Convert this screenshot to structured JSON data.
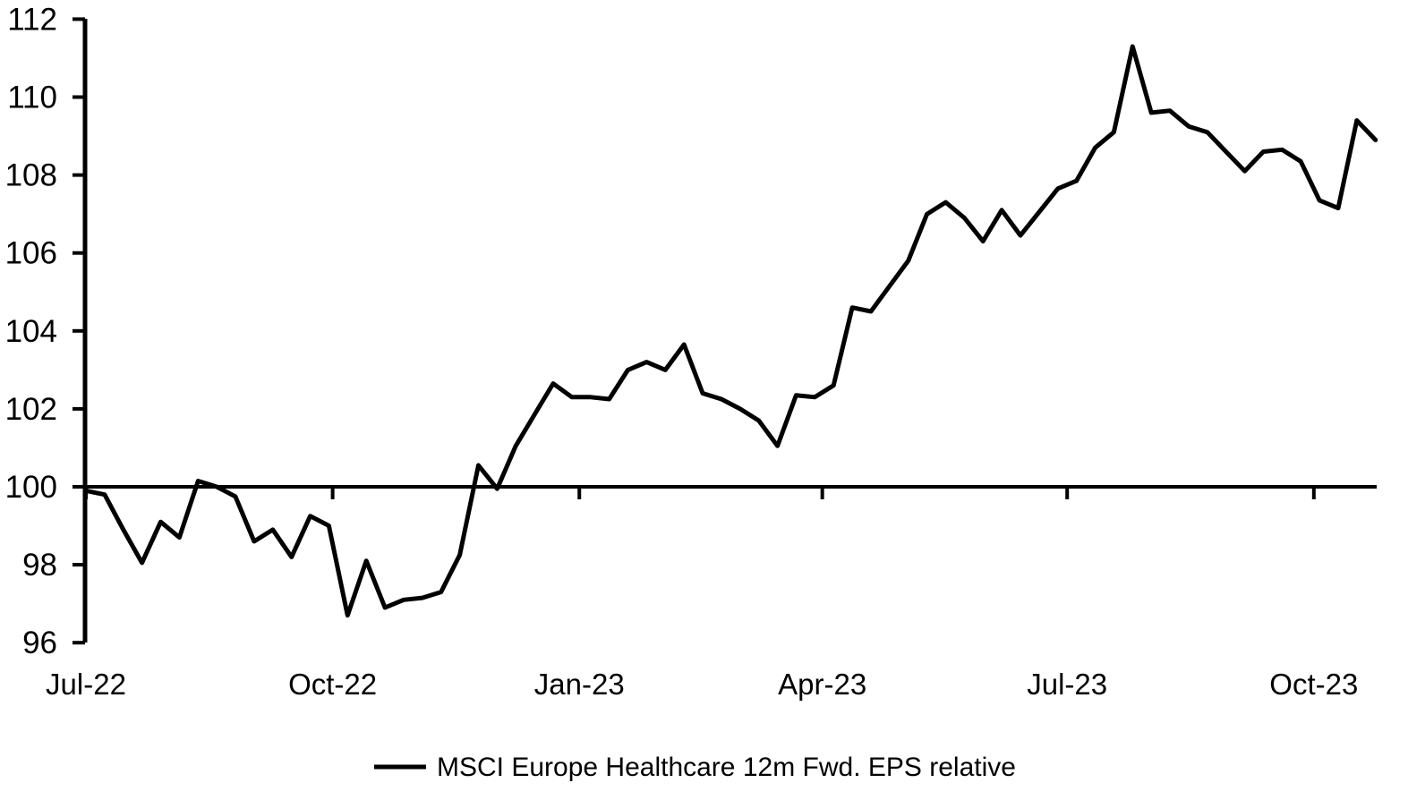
{
  "chart_data": {
    "type": "line",
    "title": "",
    "legend_label": "MSCI Europe Healthcare 12m Fwd. EPS relative",
    "legend_position": "bottom-center",
    "grid": "none",
    "baseline_value": 100,
    "ylim": [
      96,
      112
    ],
    "yticks": [
      96,
      98,
      100,
      102,
      104,
      106,
      108,
      110,
      112
    ],
    "x_tick_labels": [
      "Jul-22",
      "Oct-22",
      "Jan-23",
      "Apr-23",
      "Jul-23",
      "Oct-23"
    ],
    "x_tick_positions_weeks": [
      0,
      13.2,
      26.4,
      39.4,
      52.5,
      65.7
    ],
    "x_frequency": "weekly",
    "series": [
      {
        "name": "MSCI Europe Healthcare 12m Fwd. EPS relative",
        "color": "#000000",
        "values": [
          99.9,
          99.8,
          98.9,
          98.05,
          99.1,
          98.7,
          100.15,
          100.0,
          99.75,
          98.6,
          98.9,
          98.2,
          99.25,
          99.0,
          96.7,
          98.1,
          96.9,
          97.1,
          97.15,
          97.3,
          98.25,
          100.55,
          99.95,
          101.05,
          101.85,
          102.65,
          102.3,
          102.3,
          102.25,
          103.0,
          103.2,
          103.0,
          103.65,
          102.4,
          102.25,
          102.0,
          101.7,
          101.05,
          102.35,
          102.3,
          102.6,
          104.6,
          104.5,
          105.15,
          105.8,
          107.0,
          107.3,
          106.9,
          106.3,
          107.1,
          106.45,
          107.05,
          107.65,
          107.85,
          108.7,
          109.1,
          111.3,
          109.6,
          109.65,
          109.25,
          109.1,
          108.6,
          108.1,
          108.6,
          108.65,
          108.35,
          107.35,
          107.15,
          109.4,
          108.9
        ]
      }
    ],
    "colors": {
      "line": "#000000",
      "axis": "#000000",
      "text": "#000000",
      "background": "#FFFFFF"
    }
  }
}
